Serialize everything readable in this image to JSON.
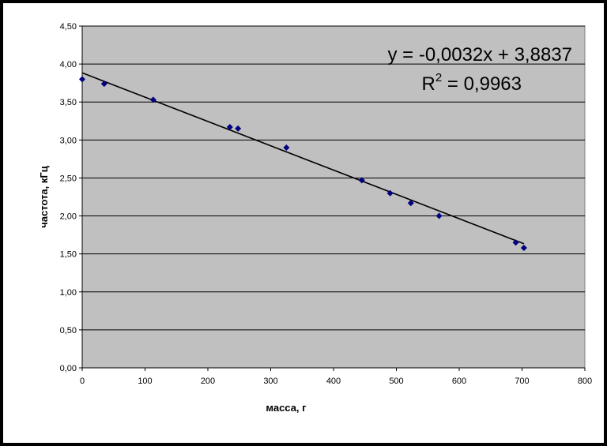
{
  "chart_data": {
    "type": "scatter",
    "title": "",
    "xlabel": "масса, г",
    "ylabel": "частота, кГц",
    "xlim": [
      0,
      800
    ],
    "ylim": [
      0,
      4.5
    ],
    "x_ticks": [
      "0",
      "100",
      "200",
      "300",
      "400",
      "500",
      "600",
      "700",
      "800"
    ],
    "y_ticks": [
      "0,00",
      "0,50",
      "1,00",
      "1,50",
      "2,00",
      "2,50",
      "3,00",
      "3,50",
      "4,00",
      "4,50"
    ],
    "grid": "horizontal",
    "plot_background": "#c0c0c0",
    "marker_color": "#000080",
    "marker": "diamond",
    "series": [
      {
        "points": [
          {
            "x": 0,
            "y": 3.8
          },
          {
            "x": 35,
            "y": 3.74
          },
          {
            "x": 113,
            "y": 3.53
          },
          {
            "x": 235,
            "y": 3.17
          },
          {
            "x": 248,
            "y": 3.15
          },
          {
            "x": 325,
            "y": 2.9
          },
          {
            "x": 445,
            "y": 2.47
          },
          {
            "x": 490,
            "y": 2.3
          },
          {
            "x": 523,
            "y": 2.17
          },
          {
            "x": 568,
            "y": 2.0
          },
          {
            "x": 690,
            "y": 1.65
          },
          {
            "x": 703,
            "y": 1.58
          }
        ]
      }
    ],
    "trendline": {
      "slope": -0.0032,
      "intercept": 3.8837,
      "x_range": [
        0,
        703
      ],
      "equation": "y = -0,0032x + 3,8837",
      "r2_base": "R",
      "r2_sup": "2",
      "r2_value": " = 0,9963"
    }
  }
}
